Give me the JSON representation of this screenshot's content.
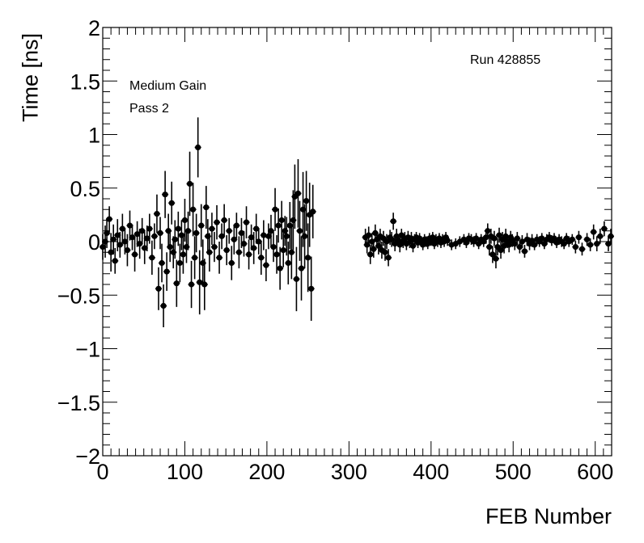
{
  "chart_data": {
    "type": "scatter",
    "xlabel": "FEB Number",
    "ylabel": "Time [ns]",
    "xlim": [
      0,
      620
    ],
    "ylim": [
      -2,
      2
    ],
    "x_ticks": [
      "0",
      "100",
      "200",
      "300",
      "400",
      "500",
      "600"
    ],
    "y_ticks": [
      "−2",
      "−1.5",
      "−1",
      "−0.5",
      "0",
      "0.5",
      "1",
      "1.5",
      "2"
    ],
    "annotations": {
      "run": "Run 428855",
      "gain": "Medium Gain",
      "pass": "Pass 2"
    },
    "grid": false,
    "marker_color": "#000000",
    "series": [
      {
        "points": [
          [
            0,
            -0.05,
            0.12
          ],
          [
            3,
            0.0,
            0.15
          ],
          [
            5,
            0.08,
            0.14
          ],
          [
            8,
            0.21,
            0.12
          ],
          [
            10,
            -0.1,
            0.18
          ],
          [
            13,
            0.02,
            0.14
          ],
          [
            15,
            -0.18,
            0.12
          ],
          [
            18,
            0.06,
            0.15
          ],
          [
            21,
            -0.03,
            0.12
          ],
          [
            24,
            0.12,
            0.14
          ],
          [
            27,
            0.0,
            0.12
          ],
          [
            30,
            -0.08,
            0.15
          ],
          [
            33,
            0.15,
            0.14
          ],
          [
            36,
            0.04,
            0.12
          ],
          [
            39,
            -0.12,
            0.16
          ],
          [
            42,
            0.07,
            0.12
          ],
          [
            45,
            -0.02,
            0.14
          ],
          [
            48,
            0.1,
            0.12
          ],
          [
            51,
            -0.06,
            0.15
          ],
          [
            54,
            0.03,
            0.12
          ],
          [
            57,
            0.12,
            0.14
          ],
          [
            60,
            -0.15,
            0.16
          ],
          [
            63,
            0.05,
            0.12
          ],
          [
            66,
            0.26,
            0.18
          ],
          [
            68,
            -0.44,
            0.2
          ],
          [
            70,
            0.08,
            0.15
          ],
          [
            72,
            -0.2,
            0.18
          ],
          [
            74,
            -0.6,
            0.2
          ],
          [
            76,
            0.44,
            0.22
          ],
          [
            78,
            -0.28,
            0.18
          ],
          [
            80,
            0.1,
            0.16
          ],
          [
            82,
            -0.05,
            0.14
          ],
          [
            84,
            0.36,
            0.2
          ],
          [
            86,
            -0.1,
            0.15
          ],
          [
            88,
            0.02,
            0.18
          ],
          [
            90,
            -0.39,
            0.22
          ],
          [
            92,
            0.12,
            0.16
          ],
          [
            94,
            -0.2,
            0.18
          ],
          [
            96,
            0.06,
            0.14
          ],
          [
            98,
            -0.12,
            0.18
          ],
          [
            100,
            0.2,
            0.2
          ],
          [
            102,
            -0.05,
            0.15
          ],
          [
            104,
            0.1,
            0.18
          ],
          [
            106,
            0.54,
            0.3
          ],
          [
            108,
            -0.4,
            0.22
          ],
          [
            110,
            0.3,
            0.25
          ],
          [
            112,
            -0.15,
            0.2
          ],
          [
            114,
            0.08,
            0.18
          ],
          [
            116,
            0.88,
            0.28
          ],
          [
            118,
            -0.38,
            0.3
          ],
          [
            120,
            0.15,
            0.2
          ],
          [
            122,
            -0.2,
            0.22
          ],
          [
            124,
            -0.4,
            0.24
          ],
          [
            126,
            0.32,
            0.2
          ],
          [
            128,
            0.05,
            0.16
          ],
          [
            130,
            -0.1,
            0.18
          ],
          [
            133,
            0.12,
            0.15
          ],
          [
            136,
            -0.05,
            0.14
          ],
          [
            139,
            0.18,
            0.16
          ],
          [
            142,
            -0.15,
            0.15
          ],
          [
            145,
            0.05,
            0.12
          ],
          [
            148,
            0.2,
            0.15
          ],
          [
            151,
            -0.08,
            0.14
          ],
          [
            154,
            0.1,
            0.12
          ],
          [
            157,
            -0.2,
            0.16
          ],
          [
            160,
            0.02,
            0.14
          ],
          [
            163,
            0.15,
            0.12
          ],
          [
            166,
            -0.1,
            0.15
          ],
          [
            169,
            0.08,
            0.14
          ],
          [
            172,
            -0.02,
            0.12
          ],
          [
            175,
            0.18,
            0.15
          ],
          [
            178,
            -0.12,
            0.14
          ],
          [
            181,
            0.04,
            0.12
          ],
          [
            184,
            -0.06,
            0.15
          ],
          [
            187,
            0.12,
            0.14
          ],
          [
            190,
            0.0,
            0.12
          ],
          [
            193,
            -0.15,
            0.16
          ],
          [
            196,
            0.06,
            0.14
          ],
          [
            199,
            -0.22,
            0.15
          ],
          [
            202,
            0.05,
            0.12
          ],
          [
            205,
            0.1,
            0.15
          ],
          [
            208,
            -0.05,
            0.14
          ],
          [
            210,
            0.3,
            0.2
          ],
          [
            212,
            -0.12,
            0.18
          ],
          [
            214,
            0.15,
            0.16
          ],
          [
            216,
            -0.25,
            0.2
          ],
          [
            218,
            0.2,
            0.18
          ],
          [
            220,
            -0.08,
            0.16
          ],
          [
            222,
            0.1,
            0.14
          ],
          [
            224,
            0.05,
            0.18
          ],
          [
            226,
            -0.2,
            0.2
          ],
          [
            228,
            0.15,
            0.22
          ],
          [
            230,
            -0.1,
            0.25
          ],
          [
            232,
            0.2,
            0.28
          ],
          [
            234,
            0.42,
            0.3
          ],
          [
            236,
            -0.35,
            0.3
          ],
          [
            238,
            0.45,
            0.32
          ],
          [
            240,
            0.1,
            0.28
          ],
          [
            242,
            -0.25,
            0.3
          ],
          [
            244,
            0.3,
            0.35
          ],
          [
            246,
            0.05,
            0.3
          ],
          [
            248,
            0.38,
            0.28
          ],
          [
            250,
            -0.15,
            0.32
          ],
          [
            252,
            0.25,
            0.3
          ],
          [
            254,
            -0.44,
            0.3
          ],
          [
            256,
            0.28,
            0.25
          ],
          [
            320,
            0.04,
            0.08
          ],
          [
            322,
            -0.03,
            0.08
          ],
          [
            324,
            0.06,
            0.08
          ],
          [
            326,
            -0.12,
            0.09
          ],
          [
            328,
            0.0,
            0.08
          ],
          [
            330,
            -0.07,
            0.08
          ],
          [
            332,
            0.08,
            0.08
          ],
          [
            334,
            0.02,
            0.07
          ],
          [
            336,
            -0.04,
            0.08
          ],
          [
            338,
            0.05,
            0.07
          ],
          [
            340,
            -0.08,
            0.08
          ],
          [
            342,
            0.03,
            0.07
          ],
          [
            344,
            -0.1,
            0.08
          ],
          [
            346,
            0.0,
            0.07
          ],
          [
            348,
            -0.15,
            0.08
          ],
          [
            350,
            0.04,
            0.07
          ],
          [
            352,
            0.02,
            0.07
          ],
          [
            354,
            0.19,
            0.08
          ],
          [
            356,
            -0.02,
            0.07
          ],
          [
            358,
            0.05,
            0.07
          ],
          [
            360,
            0.01,
            0.06
          ],
          [
            362,
            -0.03,
            0.07
          ],
          [
            364,
            0.06,
            0.06
          ],
          [
            366,
            0.0,
            0.06
          ],
          [
            368,
            0.03,
            0.06
          ],
          [
            370,
            -0.02,
            0.06
          ],
          [
            372,
            0.04,
            0.06
          ],
          [
            374,
            0.0,
            0.06
          ],
          [
            376,
            0.03,
            0.06
          ],
          [
            378,
            -0.04,
            0.06
          ],
          [
            380,
            0.02,
            0.05
          ],
          [
            382,
            0.04,
            0.05
          ],
          [
            384,
            -0.01,
            0.05
          ],
          [
            386,
            0.03,
            0.05
          ],
          [
            388,
            0.0,
            0.05
          ],
          [
            390,
            -0.03,
            0.05
          ],
          [
            392,
            0.02,
            0.05
          ],
          [
            394,
            0.0,
            0.05
          ],
          [
            396,
            -0.02,
            0.05
          ],
          [
            398,
            0.03,
            0.05
          ],
          [
            400,
            0.01,
            0.05
          ],
          [
            402,
            0.04,
            0.05
          ],
          [
            404,
            -0.02,
            0.05
          ],
          [
            406,
            0.02,
            0.05
          ],
          [
            408,
            0.0,
            0.05
          ],
          [
            410,
            0.03,
            0.05
          ],
          [
            412,
            -0.01,
            0.05
          ],
          [
            414,
            0.02,
            0.05
          ],
          [
            416,
            0.0,
            0.05
          ],
          [
            418,
            0.04,
            0.05
          ],
          [
            420,
            0.01,
            0.05
          ],
          [
            425,
            -0.03,
            0.05
          ],
          [
            430,
            -0.02,
            0.05
          ],
          [
            435,
            0.0,
            0.05
          ],
          [
            440,
            0.02,
            0.05
          ],
          [
            443,
            -0.01,
            0.05
          ],
          [
            446,
            0.03,
            0.05
          ],
          [
            449,
            0.02,
            0.05
          ],
          [
            452,
            0.0,
            0.05
          ],
          [
            455,
            0.03,
            0.05
          ],
          [
            458,
            -0.02,
            0.05
          ],
          [
            461,
            0.02,
            0.05
          ],
          [
            464,
            0.0,
            0.05
          ],
          [
            467,
            0.04,
            0.06
          ],
          [
            469,
            0.1,
            0.07
          ],
          [
            471,
            -0.05,
            0.08
          ],
          [
            473,
            0.05,
            0.07
          ],
          [
            475,
            -0.12,
            0.08
          ],
          [
            477,
            0.03,
            0.07
          ],
          [
            479,
            -0.16,
            0.09
          ],
          [
            481,
            -0.05,
            0.08
          ],
          [
            483,
            0.06,
            0.07
          ],
          [
            485,
            -0.08,
            0.08
          ],
          [
            487,
            0.02,
            0.07
          ],
          [
            489,
            -0.04,
            0.07
          ],
          [
            491,
            0.05,
            0.07
          ],
          [
            493,
            0.0,
            0.06
          ],
          [
            495,
            -0.03,
            0.07
          ],
          [
            497,
            0.04,
            0.06
          ],
          [
            499,
            0.01,
            0.06
          ],
          [
            502,
            -0.02,
            0.06
          ],
          [
            505,
            0.03,
            0.06
          ],
          [
            508,
            -0.05,
            0.06
          ],
          [
            511,
            0.0,
            0.06
          ],
          [
            514,
            -0.09,
            0.06
          ],
          [
            517,
            0.02,
            0.06
          ],
          [
            520,
            -0.02,
            0.06
          ],
          [
            523,
            0.01,
            0.06
          ],
          [
            526,
            -0.03,
            0.05
          ],
          [
            529,
            0.02,
            0.05
          ],
          [
            532,
            0.0,
            0.05
          ],
          [
            535,
            0.03,
            0.05
          ],
          [
            538,
            -0.02,
            0.05
          ],
          [
            541,
            0.02,
            0.05
          ],
          [
            544,
            0.04,
            0.05
          ],
          [
            547,
            0.01,
            0.05
          ],
          [
            550,
            0.03,
            0.05
          ],
          [
            553,
            -0.01,
            0.05
          ],
          [
            556,
            0.02,
            0.05
          ],
          [
            559,
            0.0,
            0.05
          ],
          [
            562,
            -0.02,
            0.05
          ],
          [
            565,
            0.03,
            0.05
          ],
          [
            568,
            0.0,
            0.05
          ],
          [
            572,
            0.02,
            0.05
          ],
          [
            576,
            -0.05,
            0.06
          ],
          [
            580,
            0.04,
            0.06
          ],
          [
            584,
            -0.07,
            0.06
          ],
          [
            590,
            0.02,
            0.06
          ],
          [
            594,
            -0.03,
            0.06
          ],
          [
            598,
            0.09,
            0.07
          ],
          [
            602,
            -0.02,
            0.07
          ],
          [
            606,
            0.05,
            0.07
          ],
          [
            611,
            0.12,
            0.07
          ],
          [
            616,
            -0.02,
            0.07
          ],
          [
            619,
            0.05,
            0.07
          ]
        ]
      }
    ]
  }
}
